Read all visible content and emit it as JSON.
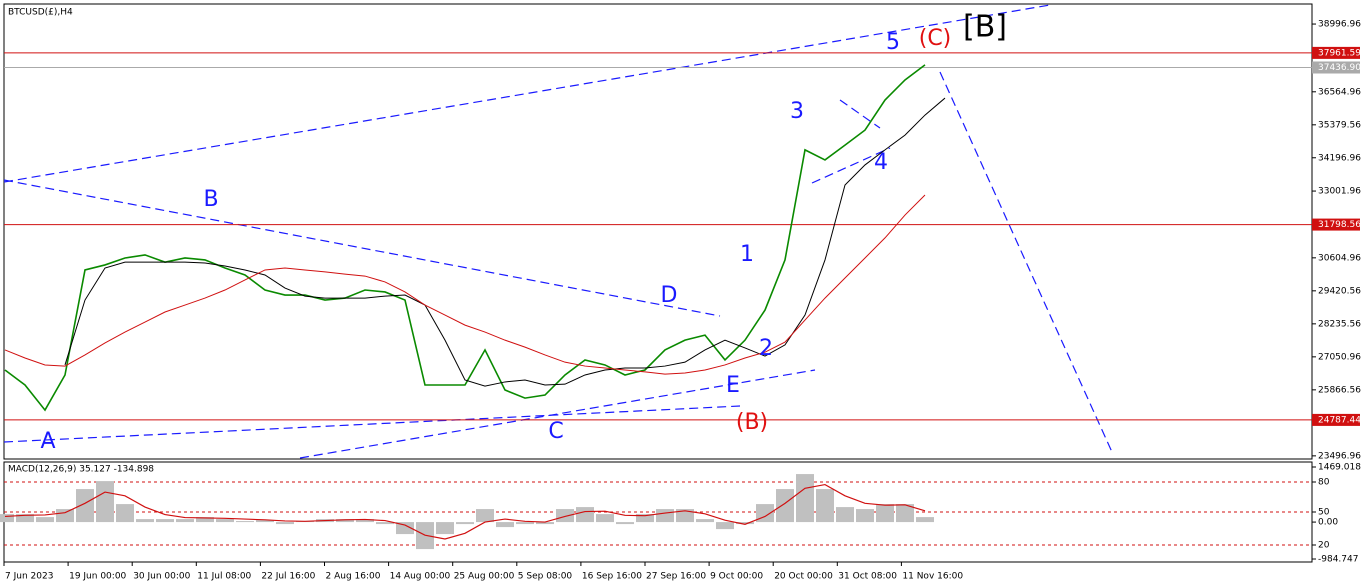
{
  "chart_data": [
    {
      "type": "candle-line",
      "title": "BTCUSD(£),H4",
      "x_labels": [
        "7 Jun 2023",
        "19 Jun 00:00",
        "30 Jun 00:00",
        "11 Jul 08:00",
        "22 Jul 16:00",
        "2 Aug 16:00",
        "14 Aug 00:00",
        "25 Aug 00:00",
        "5 Sep 08:00",
        "16 Sep 16:00",
        "27 Sep 16:00",
        "9 Oct 00:00",
        "20 Oct 00:00",
        "31 Oct 08:00",
        "11 Nov 16:00"
      ],
      "series": [
        {
          "name": "price",
          "color": "#0a8a00",
          "values": [
            26580,
            26040,
            25140,
            26400,
            30170,
            30350,
            30600,
            30710,
            30450,
            30600,
            30530,
            30240,
            29990,
            29450,
            29270,
            29270,
            29090,
            29160,
            29450,
            29380,
            29090,
            26040,
            26040,
            26040,
            27300,
            25860,
            25570,
            25680,
            26400,
            26940,
            26760,
            26400,
            26580,
            27300,
            27650,
            27830,
            26940,
            27650,
            28730,
            30530,
            34480,
            34120,
            34650,
            35190,
            36270,
            36990,
            37530
          ]
        },
        {
          "name": "sma-fast",
          "color": "#000000",
          "values": [
            null,
            null,
            null,
            26760,
            29090,
            30240,
            30450,
            30450,
            30450,
            30450,
            30420,
            30310,
            30170,
            29990,
            29520,
            29230,
            29160,
            29160,
            29160,
            29230,
            29270,
            28910,
            27650,
            26220,
            26000,
            26150,
            26220,
            26040,
            26070,
            26400,
            26580,
            26650,
            26650,
            26720,
            26860,
            27300,
            27650,
            27370,
            27080,
            27480,
            28550,
            30530,
            33220,
            33940,
            34480,
            35010,
            35730,
            36340
          ]
        },
        {
          "name": "sma-slow",
          "color": "#d01010",
          "values": [
            27300,
            27010,
            26760,
            26720,
            27120,
            27550,
            27940,
            28300,
            28660,
            28910,
            29160,
            29450,
            29810,
            30170,
            30240,
            30170,
            30100,
            30020,
            29950,
            29740,
            29380,
            28910,
            28550,
            28190,
            27940,
            27650,
            27400,
            27120,
            26860,
            26720,
            26650,
            26580,
            26510,
            26430,
            26470,
            26580,
            26760,
            27010,
            27220,
            27580,
            28370,
            29160,
            29880,
            30600,
            31320,
            32140,
            32860
          ]
        }
      ],
      "ylim": [
        23420,
        39860
      ],
      "yticks": [
        38996.96,
        36564.96,
        35379.56,
        34196.96,
        33001.96,
        30604.96,
        29420.56,
        28235.56,
        27050.96,
        25866.56,
        23496.96
      ],
      "levels": [
        {
          "value": 37961.59,
          "color": "#d01010"
        },
        {
          "value": 37436.9,
          "label": "37436.90",
          "color": "#aaaaaa"
        },
        {
          "value": 31798.56,
          "color": "#d01010"
        },
        {
          "value": 24787.44,
          "color": "#d01010"
        }
      ],
      "annotations": [
        {
          "text": "A",
          "color": "#1a1aff"
        },
        {
          "text": "B",
          "color": "#1a1aff"
        },
        {
          "text": "C",
          "color": "#1a1aff"
        },
        {
          "text": "D",
          "color": "#1a1aff"
        },
        {
          "text": "E",
          "color": "#1a1aff"
        },
        {
          "text": "(B)",
          "color": "#e01010"
        },
        {
          "text": "1",
          "color": "#1a1aff"
        },
        {
          "text": "2",
          "color": "#1a1aff"
        },
        {
          "text": "3",
          "color": "#1a1aff"
        },
        {
          "text": "4",
          "color": "#1a1aff"
        },
        {
          "text": "5",
          "color": "#1a1aff"
        },
        {
          "text": "(C)",
          "color": "#e01010"
        },
        {
          "text": "[B]",
          "color": "#000000"
        }
      ]
    },
    {
      "type": "macd",
      "title": "MACD(12,26,9) 35.127 -134.898",
      "series": [
        {
          "name": "main",
          "color": "#c0c0c0",
          "values": [
            213,
            213,
            133,
            347,
            880,
            1093,
            480,
            80,
            80,
            80,
            133,
            80,
            27,
            53,
            -53,
            27,
            80,
            80,
            80,
            -53,
            -320,
            -720,
            -320,
            -53,
            347,
            -133,
            -53,
            -53,
            347,
            400,
            213,
            -53,
            213,
            347,
            347,
            80,
            -187,
            -53,
            480,
            880,
            1280,
            880,
            400,
            347,
            480,
            480,
            133
          ]
        },
        {
          "name": "signal",
          "color": "#d01010",
          "values": [
            150,
            180,
            190,
            250,
            500,
            800,
            700,
            400,
            200,
            120,
            110,
            100,
            80,
            60,
            30,
            20,
            40,
            60,
            70,
            40,
            -80,
            -350,
            -450,
            -300,
            0,
            80,
            20,
            0,
            150,
            280,
            290,
            180,
            170,
            240,
            300,
            220,
            50,
            -60,
            150,
            500,
            900,
            1000,
            700,
            500,
            450,
            460,
            300
          ]
        }
      ],
      "ylim": [
        -1011,
        1602
      ],
      "yticks": [
        1469.018,
        {
          "value": 1069,
          "label": "80",
          "level": true
        },
        {
          "value": 269,
          "label": "50",
          "level": true
        },
        {
          "value": 0,
          "label": "0.00"
        },
        {
          "value": -611,
          "label": "20",
          "level": true
        },
        -984.747
      ]
    }
  ]
}
